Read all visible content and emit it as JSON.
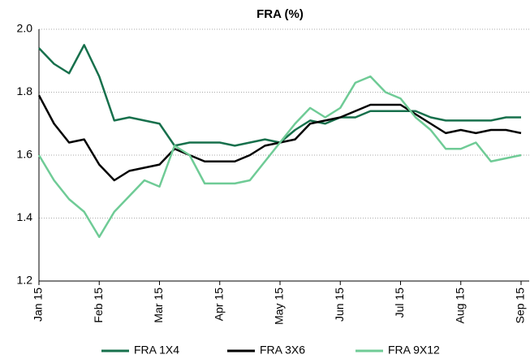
{
  "chart_data": {
    "type": "line",
    "title": "FRA (%)",
    "categories": [
      "Jan 15",
      null,
      null,
      null,
      "Feb 15",
      null,
      null,
      null,
      "Mar 15",
      null,
      null,
      null,
      "Apr 15",
      null,
      null,
      null,
      "May 15",
      null,
      null,
      null,
      "Jun 15",
      null,
      null,
      null,
      "Jul 15",
      null,
      null,
      null,
      "Aug 15",
      null,
      null,
      null,
      "Sep 15"
    ],
    "series": [
      {
        "name": "FRA 1X4",
        "color": "#17704c",
        "values": [
          1.94,
          1.89,
          1.86,
          1.95,
          1.85,
          1.71,
          1.72,
          1.71,
          1.7,
          1.63,
          1.64,
          1.64,
          1.64,
          1.63,
          1.64,
          1.65,
          1.64,
          1.68,
          1.71,
          1.7,
          1.72,
          1.72,
          1.74,
          1.74,
          1.74,
          1.74,
          1.72,
          1.71,
          1.71,
          1.71,
          1.71,
          1.72,
          1.72
        ]
      },
      {
        "name": "FRA 3X6",
        "color": "#000000",
        "values": [
          1.79,
          1.7,
          1.64,
          1.65,
          1.57,
          1.52,
          1.55,
          1.56,
          1.57,
          1.62,
          1.6,
          1.58,
          1.58,
          1.58,
          1.6,
          1.63,
          1.64,
          1.65,
          1.7,
          1.71,
          1.72,
          1.74,
          1.76,
          1.76,
          1.76,
          1.73,
          1.7,
          1.67,
          1.68,
          1.67,
          1.68,
          1.68,
          1.67
        ]
      },
      {
        "name": "FRA 9X12",
        "color": "#6fcb96",
        "values": [
          1.6,
          1.52,
          1.46,
          1.42,
          1.34,
          1.42,
          1.47,
          1.52,
          1.5,
          1.63,
          1.6,
          1.51,
          1.51,
          1.51,
          1.52,
          1.58,
          1.64,
          1.7,
          1.75,
          1.72,
          1.75,
          1.83,
          1.85,
          1.8,
          1.78,
          1.72,
          1.68,
          1.62,
          1.62,
          1.64,
          1.58,
          1.59,
          1.6
        ]
      }
    ],
    "ylim": [
      1.2,
      2.0
    ],
    "yticks": [
      {
        "value": 1.2,
        "label": "1.2"
      },
      {
        "value": 1.4,
        "label": "1.4"
      },
      {
        "value": 1.6,
        "label": "1.6"
      },
      {
        "value": 1.8,
        "label": "1.8"
      },
      {
        "value": 2.0,
        "label": "2.0"
      }
    ],
    "grid": true
  }
}
